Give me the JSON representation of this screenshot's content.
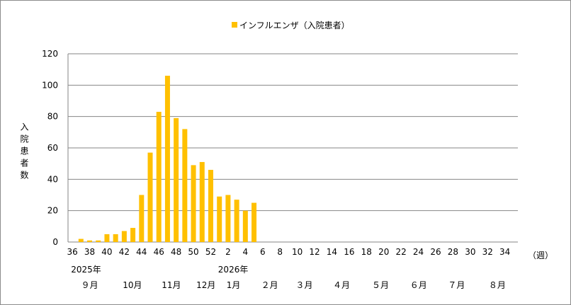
{
  "chart_data": {
    "type": "bar",
    "legend": "インフルエンザ（入院患者）",
    "legend_position": "top-center",
    "ylabel": "入院患者数",
    "xunit": "（週）",
    "ylim": [
      0,
      120
    ],
    "yticks": [
      0,
      20,
      40,
      60,
      80,
      100,
      120
    ],
    "grid": true,
    "color": "#FFC000",
    "categories": [
      36,
      37,
      38,
      39,
      40,
      41,
      42,
      43,
      44,
      45,
      46,
      47,
      48,
      49,
      50,
      51,
      52,
      1,
      2,
      3,
      4,
      5,
      6,
      7,
      8,
      9,
      10,
      11,
      12,
      13,
      14,
      15,
      16,
      17,
      18,
      19,
      20,
      21,
      22,
      23,
      24,
      25,
      26,
      27,
      28,
      29,
      30,
      31,
      32,
      33,
      34,
      35
    ],
    "values": [
      null,
      2,
      1,
      1,
      5,
      5,
      7,
      9,
      30,
      57,
      83,
      106,
      79,
      72,
      49,
      51,
      46,
      29,
      30,
      27,
      20,
      25,
      null,
      null,
      null,
      null,
      null,
      null,
      null,
      null,
      null,
      null,
      null,
      null,
      null,
      null,
      null,
      null,
      null,
      null,
      null,
      null,
      null,
      null,
      null,
      null,
      null,
      null,
      null,
      null,
      null,
      null
    ],
    "xtick_labels": [
      "36",
      "38",
      "40",
      "42",
      "44",
      "46",
      "48",
      "50",
      "52",
      "2",
      "4",
      "6",
      "8",
      "10",
      "12",
      "14",
      "16",
      "18",
      "20",
      "22",
      "24",
      "26",
      "28",
      "30",
      "32",
      "34"
    ],
    "years": [
      {
        "label": "2025年",
        "week": 37
      },
      {
        "label": "2026年",
        "week": "2"
      }
    ],
    "months": [
      {
        "label": "９月",
        "pos": 1.2
      },
      {
        "label": "10月",
        "pos": 6
      },
      {
        "label": "11月",
        "pos": 10.5
      },
      {
        "label": "12月",
        "pos": 14.5
      },
      {
        "label": "1月",
        "pos": 18
      },
      {
        "label": "２月",
        "pos": 22
      },
      {
        "label": "３月",
        "pos": 26
      },
      {
        "label": "４月",
        "pos": 30.3
      },
      {
        "label": "５月",
        "pos": 34.8
      },
      {
        "label": "６月",
        "pos": 39.2
      },
      {
        "label": "７月",
        "pos": 43.6
      },
      {
        "label": "８月",
        "pos": 48.3
      }
    ]
  }
}
